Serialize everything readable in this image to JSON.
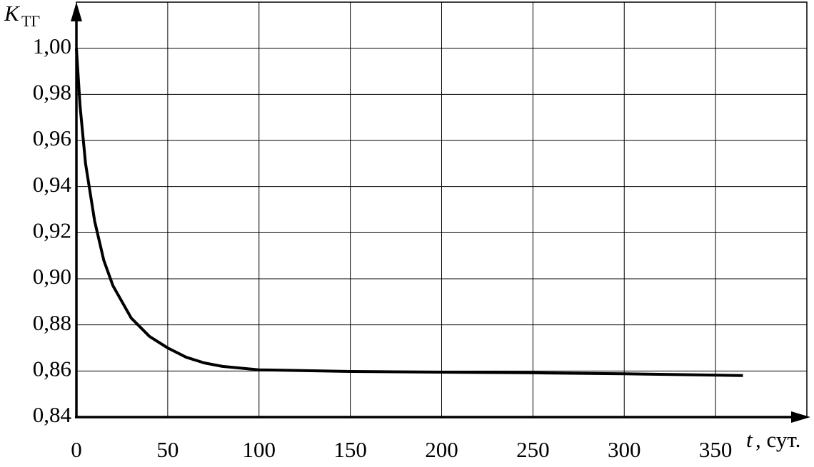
{
  "chart_data": {
    "type": "line",
    "y_label": "K",
    "y_label_sub": "ТГ",
    "x_label": "t",
    "x_label_unit": ", сут.",
    "x": [
      0,
      2,
      5,
      10,
      15,
      20,
      30,
      40,
      50,
      60,
      70,
      80,
      100,
      150,
      200,
      250,
      300,
      365
    ],
    "series": [
      {
        "color": "#000000",
        "values": [
          1.0,
          0.975,
          0.95,
          0.925,
          0.908,
          0.897,
          0.883,
          0.875,
          0.87,
          0.866,
          0.8635,
          0.862,
          0.8605,
          0.8598,
          0.8595,
          0.8592,
          0.8588,
          0.858
        ]
      }
    ],
    "xlim": [
      0,
      400
    ],
    "ylim": [
      0.84,
      1.02
    ],
    "xticks": [
      0,
      50,
      100,
      150,
      200,
      250,
      300,
      350
    ],
    "yticks": [
      {
        "value": 0.84,
        "label": "0,84"
      },
      {
        "value": 0.86,
        "label": "0,86"
      },
      {
        "value": 0.88,
        "label": "0,88"
      },
      {
        "value": 0.9,
        "label": "0,90"
      },
      {
        "value": 0.92,
        "label": "0,92"
      },
      {
        "value": 0.94,
        "label": "0,94"
      },
      {
        "value": 0.96,
        "label": "0,96"
      },
      {
        "value": 0.98,
        "label": "0,98"
      },
      {
        "value": 1.0,
        "label": "1,00"
      }
    ],
    "grid": true
  }
}
